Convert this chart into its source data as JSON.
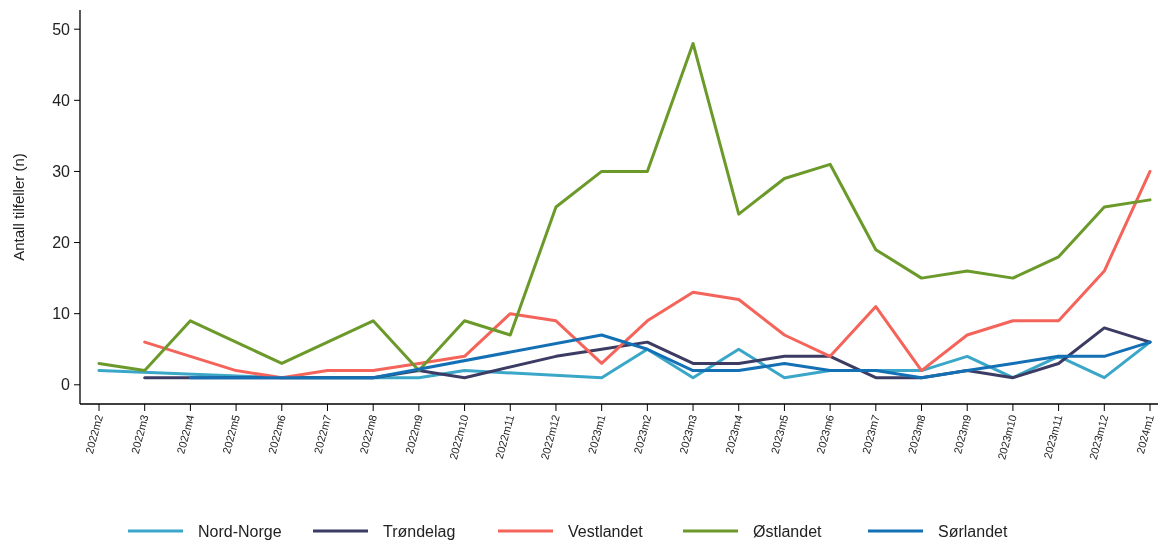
{
  "chart_data": {
    "type": "line",
    "ylabel": "Antall tilfeller (n)",
    "categories": [
      "2022m2",
      "2022m3",
      "2022m4",
      "2022m5",
      "2022m6",
      "2022m7",
      "2022m8",
      "2022m9",
      "2022m10",
      "2022m11",
      "2022m12",
      "2023m1",
      "2023m2",
      "2023m3",
      "2023m4",
      "2023m5",
      "2023m6",
      "2023m7",
      "2023m8",
      "2023m9",
      "2023m10",
      "2023m11",
      "2023m12",
      "2024m1"
    ],
    "series": [
      {
        "name": "Nord-Norge",
        "color": "#3aa6c8",
        "values": [
          2,
          null,
          null,
          null,
          1,
          null,
          null,
          1,
          2,
          null,
          null,
          1,
          5,
          1,
          5,
          1,
          2,
          2,
          2,
          4,
          1,
          4,
          1,
          6
        ]
      },
      {
        "name": "Trøndelag",
        "color": "#3b3b63",
        "values": [
          null,
          1,
          1,
          null,
          null,
          null,
          1,
          2,
          1,
          null,
          4,
          5,
          6,
          3,
          3,
          4,
          4,
          1,
          1,
          2,
          1,
          3,
          8,
          6
        ]
      },
      {
        "name": "Vestlandet",
        "color": "#f4645a",
        "values": [
          null,
          6,
          4,
          2,
          1,
          2,
          2,
          3,
          4,
          10,
          9,
          3,
          9,
          13,
          12,
          7,
          4,
          11,
          2,
          7,
          9,
          9,
          16,
          30
        ]
      },
      {
        "name": "Østlandet",
        "color": "#6b9a2a",
        "values": [
          3,
          2,
          9,
          6,
          3,
          6,
          9,
          2,
          9,
          7,
          25,
          30,
          30,
          48,
          24,
          29,
          31,
          19,
          15,
          16,
          15,
          18,
          25,
          26
        ]
      },
      {
        "name": "Sørlandet",
        "color": "#1470b4",
        "values": [
          null,
          null,
          1,
          1,
          1,
          1,
          1,
          null,
          null,
          null,
          null,
          7,
          5,
          2,
          2,
          3,
          2,
          2,
          1,
          2,
          3,
          4,
          4,
          6
        ]
      }
    ],
    "ylim": [
      -2.7,
      52.7
    ],
    "yticks": [
      0,
      10,
      20,
      30,
      40,
      50
    ],
    "grid": false,
    "legend": "bottom",
    "line_style": "solid",
    "marker": "none"
  }
}
